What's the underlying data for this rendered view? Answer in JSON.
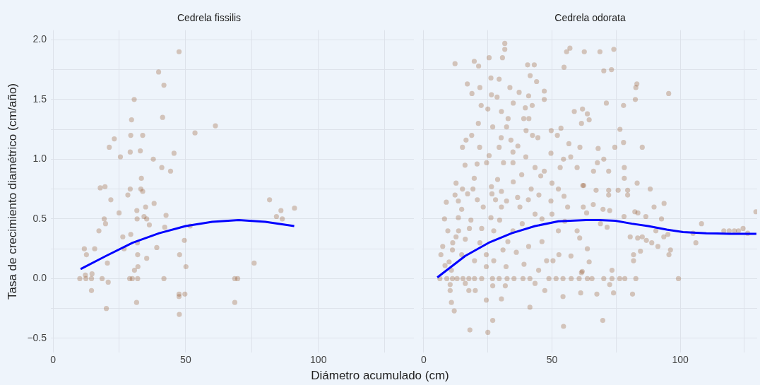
{
  "chart_data": [
    {
      "type": "scatter",
      "title": "Cedrela fissilis",
      "xlabel": "Diámetro acumulado (cm)",
      "ylabel": "Tasa de crecimiento diamétrico (cm/año)",
      "xlim": [
        -0.8,
        136
      ],
      "xticks": [
        0,
        {
          "value": 25,
          "label": null
        },
        50,
        {
          "value": 75,
          "label": null
        },
        100,
        {
          "value": 125,
          "label": null
        }
      ],
      "ylim": [
        -0.62,
        2.08
      ],
      "yticks": [
        {
          "value": -0.5,
          "label": "−0.5"
        },
        {
          "value": -0.25,
          "label": null
        },
        {
          "value": 0,
          "label": "0.0"
        },
        {
          "value": 0.25,
          "label": null
        },
        {
          "value": 0.5,
          "label": "0.5"
        },
        {
          "value": 0.75,
          "label": null
        },
        {
          "value": 1,
          "label": "1.0"
        },
        {
          "value": 1.25,
          "label": null
        },
        {
          "value": 1.5,
          "label": "1.5"
        },
        {
          "value": 1.75,
          "label": null
        },
        {
          "value": 2,
          "label": "2.0"
        }
      ],
      "grid": true,
      "legend": false,
      "series": [
        {
          "marker": "circle",
          "color": "#8b4513",
          "x": [
            47.5,
            39.8,
            41.8,
            30.6,
            29.6,
            41.3,
            61.2,
            53.5,
            23.1,
            29.3,
            33.8,
            21.2,
            29.1,
            32.9,
            25.4,
            45.6,
            37.8,
            41.0,
            44.3,
            33.3,
            17.8,
            19.6,
            29.1,
            33.1,
            33.8,
            28.2,
            21.8,
            38.1,
            31.6,
            34.9,
            24.9,
            42.6,
            34.3,
            19.3,
            31.7,
            35.3,
            19.8,
            36.3,
            42.1,
            51.7,
            17.3,
            26.3,
            29.3,
            49.5,
            31.8,
            39.1,
            11.8,
            15.7,
            26.8,
            12.6,
            31.9,
            47.7,
            35.3,
            20.5,
            75.8,
            32.0,
            50.1,
            30.7,
            12.2,
            14.7,
            10.1,
            12.4,
            14.5,
            18.5,
            28.9,
            29.9,
            31.9,
            41.8,
            68.5,
            69.6,
            20.8,
            14.5,
            47.5,
            49.7,
            47.5,
            31.5,
            68.5,
            20.1,
            47.6,
            81.6,
            84.2,
            85.9,
            86.4,
            91.0
          ],
          "values": [
            1.9,
            1.73,
            1.62,
            1.5,
            1.33,
            1.35,
            1.28,
            1.22,
            1.17,
            1.2,
            1.2,
            1.1,
            1.06,
            1.07,
            1.02,
            1.05,
            1.0,
            0.93,
            0.9,
            0.84,
            0.76,
            0.77,
            0.75,
            0.75,
            0.73,
            0.7,
            0.66,
            0.63,
            0.57,
            0.6,
            0.55,
            0.53,
            0.52,
            0.5,
            0.5,
            0.5,
            0.46,
            0.45,
            0.43,
            0.44,
            0.4,
            0.35,
            0.37,
            0.32,
            0.3,
            0.26,
            0.25,
            0.25,
            0.25,
            0.2,
            0.2,
            0.2,
            0.17,
            0.13,
            0.13,
            0.1,
            0.1,
            0.07,
            0.03,
            0.04,
            0,
            0,
            0,
            0,
            0,
            0,
            0,
            0,
            0,
            0,
            -0.03,
            -0.1,
            -0.13,
            -0.13,
            -0.15,
            -0.2,
            -0.2,
            -0.25,
            -0.3,
            0.66,
            0.52,
            0.57,
            0.5,
            0.59
          ]
        },
        {
          "type": "line",
          "marker": "none",
          "color": "#0000ff",
          "x": [
            10.4,
            20,
            30,
            40,
            50,
            60,
            70,
            80,
            90.9
          ],
          "values": [
            0.08,
            0.19,
            0.3,
            0.38,
            0.44,
            0.475,
            0.49,
            0.475,
            0.44
          ]
        }
      ]
    },
    {
      "type": "scatter",
      "title": "Cedrela odorata",
      "xlim": [
        -0.8,
        130
      ],
      "xticks": [
        0,
        {
          "value": 25,
          "label": null
        },
        50,
        {
          "value": 75,
          "label": null
        },
        100,
        {
          "value": 125,
          "label": null
        }
      ],
      "ylim": [
        -0.62,
        2.08
      ],
      "yticks": [
        -0.5,
        -0.25,
        0,
        0.25,
        0.5,
        0.75,
        1,
        1.25,
        1.5,
        1.75,
        2
      ],
      "grid": true,
      "legend": false,
      "tick_labels": "x",
      "series": [
        {
          "marker": "circle",
          "color": "#8b4513",
          "x": [
            31.6,
            31.6,
            19.7,
            12.2,
            25.5,
            30.7,
            21.4,
            40.5,
            43.1,
            54.7,
            55.7,
            57.0,
            62.6,
            41.5,
            26.2,
            29.4,
            44.0,
            17.0,
            21.9,
            33.6,
            18.8,
            26.4,
            28.6,
            47.0,
            47.0,
            37.2,
            40.9,
            22.4,
            34.9,
            42.3,
            25.0,
            30.3,
            39.6,
            58.7,
            61.9,
            32.9,
            39.0,
            41.0,
            61.5,
            21.3,
            32.3,
            26.9,
            39.9,
            49.7,
            53.5,
            18.7,
            30.2,
            42.4,
            52.1,
            16.5,
            34.0,
            44.5,
            15.1,
            21.8,
            29.4,
            36.7,
            56.6,
            60.9,
            49.6,
            25.5,
            34.8,
            39.8,
            54.5,
            57.3,
            16.1,
            20.8,
            24.5,
            31.1,
            34.8,
            43.4,
            47.0,
            53.2,
            59.8,
            19.7,
            28.8,
            38.2,
            34.9,
            45.6,
            12.6,
            15.1,
            19.2,
            26.4,
            30.3,
            41.9,
            50.0,
            52.5,
            62.4,
            12.2,
            17.1,
            26.6,
            36.6,
            44.9,
            54.7,
            8.8,
            13.5,
            20.9,
            28.0,
            32.3,
            40.8,
            49.6,
            14.8,
            23.2,
            30.3,
            37.5,
            56.1,
            43.4,
            50.0,
            8.1,
            13.5,
            18.4,
            26.2,
            29.6,
            46.1,
            55.0,
            9.4,
            13.6,
            17.8,
            22.6,
            27.3,
            34.8,
            38.4,
            52.5,
            59.8,
            11.3,
            12.6,
            16.2,
            21.9,
            32.8,
            40.9,
            46.1,
            60.8,
            7.4,
            11.2,
            14.8,
            24.4,
            30.9,
            36.1,
            52.7,
            57.4,
            6.7,
            9.9,
            19.8,
            27.3,
            39.1,
            47.9,
            50.4,
            8.3,
            10.8,
            24.4,
            32.1,
            44.8,
            61.8,
            6.3,
            9.0,
            11.2,
            13.0,
            15.3,
            17.6,
            19.8,
            22.6,
            26.8,
            29.4,
            32.5,
            35.2,
            38.7,
            41.4,
            48.8,
            51.6,
            54.3,
            57.5,
            60.6,
            10.3,
            16.2,
            26.9,
            31.8,
            43.4,
            10.3,
            17.6,
            20.1,
            47.2,
            61.2,
            10.8,
            24.4,
            30.3,
            54.3,
            41.4,
            11.9,
            26.9,
            18.0,
            25.0,
            54.5,
            68.7,
            74.1,
            70.2,
            73.2,
            71.2,
            77.9,
            82.5,
            82.7,
            83.1,
            95.5,
            63.8,
            64.5,
            76.5,
            77.9,
            68.0,
            74.5,
            85.2,
            67.7,
            70.2,
            66.2,
            72.1,
            78.2,
            78.2,
            83.2,
            62.0,
            67.2,
            72.1,
            75.8,
            79.5,
            72.1,
            79.5,
            88.3,
            66.1,
            62.2,
            63.5,
            69.9,
            72.5,
            82.3,
            83.5,
            86.6,
            89.8,
            92.7,
            93.7,
            68.9,
            71.5,
            78.1,
            80.5,
            83.4,
            85.2,
            86.8,
            88.9,
            90.5,
            91.3,
            93.6,
            95.2,
            84.5,
            95.6,
            96.2,
            105.0,
            108.3,
            106.1,
            117.0,
            119.1,
            121.1,
            122.7,
            124.5,
            126.3,
            129.5,
            63.8,
            64.5,
            81.8,
            81.8,
            61.5,
            73.4,
            63.8,
            65.6,
            70.2,
            73.4,
            76.4,
            78.4,
            82.7,
            99.3,
            72.5,
            67.5,
            74.0,
            81.4,
            69.8
          ],
          "values": [
            1.97,
            1.92,
            1.82,
            1.8,
            1.85,
            1.85,
            1.78,
            1.79,
            1.79,
            1.77,
            1.9,
            1.93,
            1.9,
            1.7,
            1.68,
            1.67,
            1.65,
            1.63,
            1.6,
            1.6,
            1.55,
            1.54,
            1.52,
            1.57,
            1.5,
            1.56,
            1.53,
            1.45,
            1.47,
            1.45,
            1.42,
            1.4,
            1.43,
            1.4,
            1.42,
            1.34,
            1.34,
            1.34,
            1.3,
            1.3,
            1.27,
            1.27,
            1.24,
            1.24,
            1.26,
            1.2,
            1.18,
            1.2,
            1.2,
            1.16,
            1.16,
            1.18,
            1.1,
            1.1,
            1.1,
            1.11,
            1.13,
            1.1,
            1.05,
            1.03,
            1.06,
            1.02,
            1.0,
            1.02,
            0.95,
            0.96,
            0.97,
            0.97,
            0.97,
            0.93,
            0.9,
            0.93,
            0.93,
            0.84,
            0.83,
            0.87,
            0.81,
            0.86,
            0.8,
            0.75,
            0.75,
            0.77,
            0.73,
            0.75,
            0.8,
            0.75,
            0.78,
            0.7,
            0.71,
            0.71,
            0.68,
            0.7,
            0.69,
            0.64,
            0.65,
            0.66,
            0.66,
            0.65,
            0.66,
            0.65,
            0.58,
            0.6,
            0.6,
            0.6,
            0.6,
            0.54,
            0.54,
            0.5,
            0.51,
            0.49,
            0.51,
            0.49,
            0.5,
            0.48,
            0.4,
            0.4,
            0.42,
            0.42,
            0.4,
            0.4,
            0.46,
            0.4,
            0.4,
            0.3,
            0.35,
            0.33,
            0.3,
            0.31,
            0.27,
            0.31,
            0.34,
            0.27,
            0.24,
            0.2,
            0.2,
            0.24,
            0.22,
            0.2,
            0.19,
            0.2,
            0.14,
            0.15,
            0.15,
            0.12,
            0.15,
            0.15,
            0.11,
            0.07,
            0.1,
            0.1,
            0.07,
            0.06,
            0,
            0,
            0,
            0,
            0,
            0,
            0,
            0,
            0,
            0,
            0,
            0,
            0,
            0,
            0,
            0,
            0,
            0,
            0,
            -0.05,
            -0.04,
            -0.06,
            -0.06,
            -0.04,
            -0.1,
            -0.1,
            -0.1,
            -0.1,
            -0.12,
            -0.2,
            -0.18,
            -0.17,
            -0.15,
            -0.24,
            -0.27,
            -0.35,
            -0.43,
            -0.45,
            -0.4,
            1.9,
            1.92,
            1.74,
            1.75,
            1.47,
            1.45,
            1.5,
            1.6,
            1.63,
            1.55,
            1.38,
            1.33,
            1.25,
            1.14,
            1.09,
            1.1,
            1.1,
            0.97,
            1.0,
            0.9,
            0.9,
            0.93,
            0.84,
            0.8,
            0.78,
            0.74,
            0.74,
            0.74,
            0.74,
            0.7,
            0.7,
            0.75,
            0.62,
            0.6,
            0.55,
            0.58,
            0.57,
            0.56,
            0.55,
            0.52,
            0.6,
            0.5,
            0.63,
            0.46,
            0.43,
            0.52,
            0.35,
            0.34,
            0.35,
            0.32,
            0.3,
            0.4,
            0.27,
            0.35,
            0.37,
            0.23,
            0.2,
            0.24,
            0.38,
            0.46,
            0.3,
            0.4,
            0.4,
            0.4,
            0.4,
            0.42,
            0.38,
            0.56,
            0.25,
            0.14,
            0.2,
            0.15,
            0.05,
            0.07,
            0,
            0,
            0,
            0,
            0,
            0,
            0,
            0,
            -0.05,
            -0.13,
            -0.12,
            -0.13,
            -0.35
          ]
        },
        {
          "type": "line",
          "marker": "none",
          "color": "#0000ff",
          "x": [
            5.3,
            16.2,
            25.3,
            34.3,
            43.4,
            52.5,
            63.3,
            68.4,
            74.7,
            81.1,
            87.5,
            94.7,
            101.1,
            110.2,
            119.3,
            129.7
          ],
          "values": [
            0.01,
            0.19,
            0.3,
            0.38,
            0.44,
            0.48,
            0.49,
            0.49,
            0.485,
            0.46,
            0.44,
            0.41,
            0.39,
            0.38,
            0.375,
            0.375
          ]
        }
      ]
    }
  ]
}
